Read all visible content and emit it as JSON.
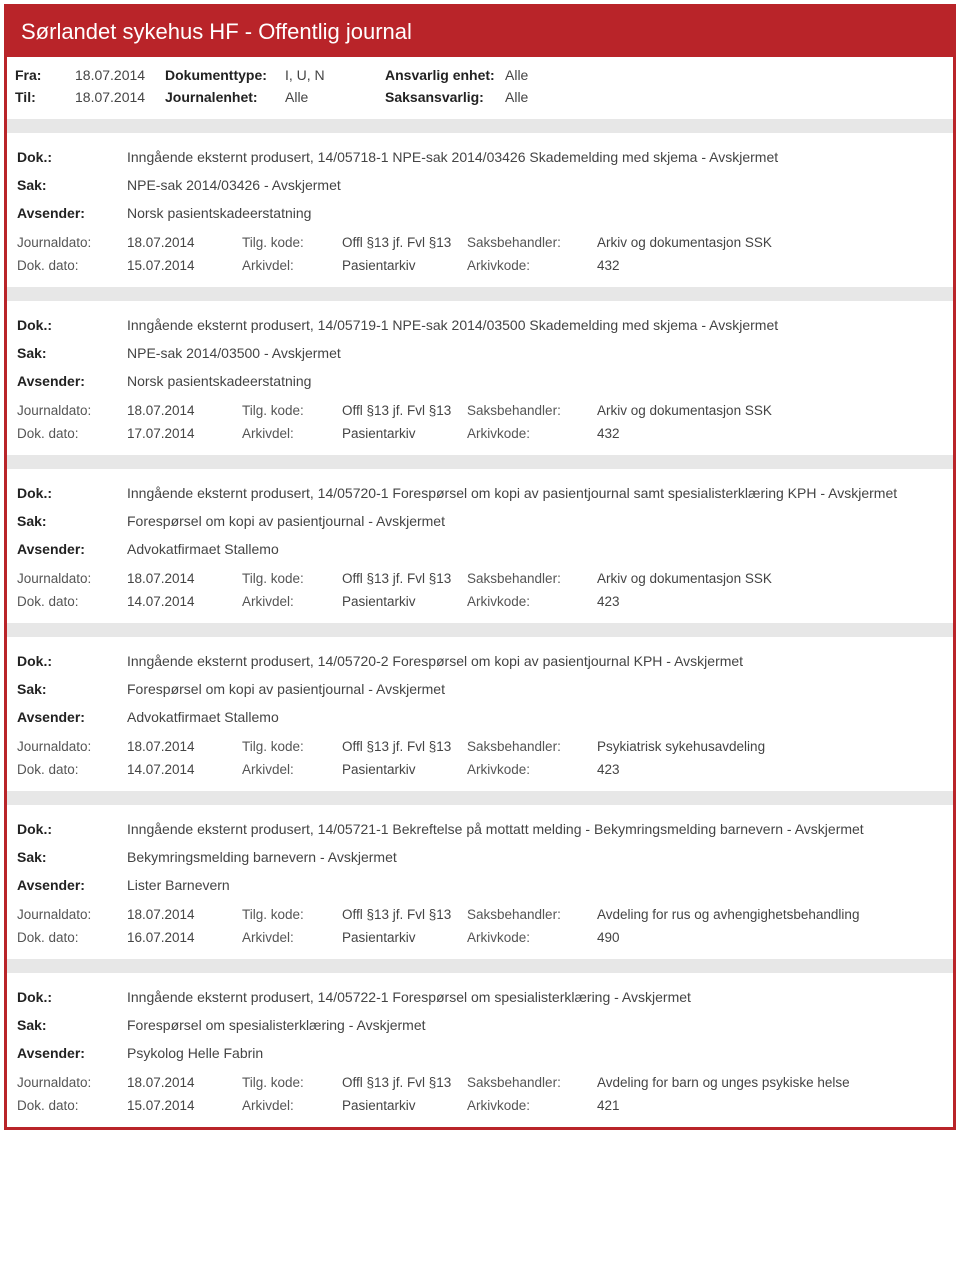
{
  "header": {
    "title": "Sørlandet sykehus HF - Offentlig journal"
  },
  "meta": {
    "fra_label": "Fra:",
    "fra": "18.07.2014",
    "til_label": "Til:",
    "til": "18.07.2014",
    "dokumenttype_label": "Dokumenttype:",
    "dokumenttype": "I, U, N",
    "journalenhet_label": "Journalenhet:",
    "journalenhet": "Alle",
    "ansvarlig_label": "Ansvarlig enhet:",
    "ansvarlig": "Alle",
    "saksansvarlig_label": "Saksansvarlig:",
    "saksansvarlig": "Alle"
  },
  "labels": {
    "dok": "Dok.:",
    "sak": "Sak:",
    "avsender": "Avsender:",
    "journaldato": "Journaldato:",
    "dokdato": "Dok. dato:",
    "tilgkode": "Tilg. kode:",
    "arkivdel": "Arkivdel:",
    "saksbehandler": "Saksbehandler:",
    "arkivkode": "Arkivkode:"
  },
  "entries": [
    {
      "dok": "Inngående eksternt produsert, 14/05718-1 NPE-sak 2014/03426 Skademelding med skjema - Avskjermet",
      "sak": "NPE-sak 2014/03426 - Avskjermet",
      "avsender": "Norsk pasientskadeerstatning",
      "journaldato": "18.07.2014",
      "dokdato": "15.07.2014",
      "tilgkode": "Offl §13 jf. Fvl §13",
      "arkivdel": "Pasientarkiv",
      "saksbehandler": "Arkiv og dokumentasjon SSK",
      "arkivkode": "432"
    },
    {
      "dok": "Inngående eksternt produsert, 14/05719-1 NPE-sak 2014/03500 Skademelding med skjema - Avskjermet",
      "sak": "NPE-sak 2014/03500 - Avskjermet",
      "avsender": "Norsk pasientskadeerstatning",
      "journaldato": "18.07.2014",
      "dokdato": "17.07.2014",
      "tilgkode": "Offl §13 jf. Fvl §13",
      "arkivdel": "Pasientarkiv",
      "saksbehandler": "Arkiv og dokumentasjon SSK",
      "arkivkode": "432"
    },
    {
      "dok": "Inngående eksternt produsert, 14/05720-1 Forespørsel om kopi av pasientjournal samt spesialisterklæring KPH - Avskjermet",
      "sak": "Forespørsel om kopi av pasientjournal - Avskjermet",
      "avsender": "Advokatfirmaet Stallemo",
      "journaldato": "18.07.2014",
      "dokdato": "14.07.2014",
      "tilgkode": "Offl §13 jf. Fvl §13",
      "arkivdel": "Pasientarkiv",
      "saksbehandler": "Arkiv og dokumentasjon SSK",
      "arkivkode": "423"
    },
    {
      "dok": "Inngående eksternt produsert, 14/05720-2 Forespørsel om kopi av pasientjournal KPH - Avskjermet",
      "sak": "Forespørsel om kopi av pasientjournal - Avskjermet",
      "avsender": "Advokatfirmaet Stallemo",
      "journaldato": "18.07.2014",
      "dokdato": "14.07.2014",
      "tilgkode": "Offl §13 jf. Fvl §13",
      "arkivdel": "Pasientarkiv",
      "saksbehandler": "Psykiatrisk sykehusavdeling",
      "arkivkode": "423"
    },
    {
      "dok": "Inngående eksternt produsert, 14/05721-1 Bekreftelse på mottatt melding - Bekymringsmelding barnevern - Avskjermet",
      "sak": "Bekymringsmelding barnevern - Avskjermet",
      "avsender": "Lister Barnevern",
      "journaldato": "18.07.2014",
      "dokdato": "16.07.2014",
      "tilgkode": "Offl §13 jf. Fvl §13",
      "arkivdel": "Pasientarkiv",
      "saksbehandler": "Avdeling for rus og avhengighetsbehandling",
      "arkivkode": "490"
    },
    {
      "dok": "Inngående eksternt produsert, 14/05722-1 Forespørsel om spesialisterklæring - Avskjermet",
      "sak": "Forespørsel om spesialisterklæring - Avskjermet",
      "avsender": "Psykolog Helle Fabrin",
      "journaldato": "18.07.2014",
      "dokdato": "15.07.2014",
      "tilgkode": "Offl §13 jf. Fvl §13",
      "arkivdel": "Pasientarkiv",
      "saksbehandler": "Avdeling for barn og unges psykiske helse",
      "arkivkode": "421"
    }
  ]
}
